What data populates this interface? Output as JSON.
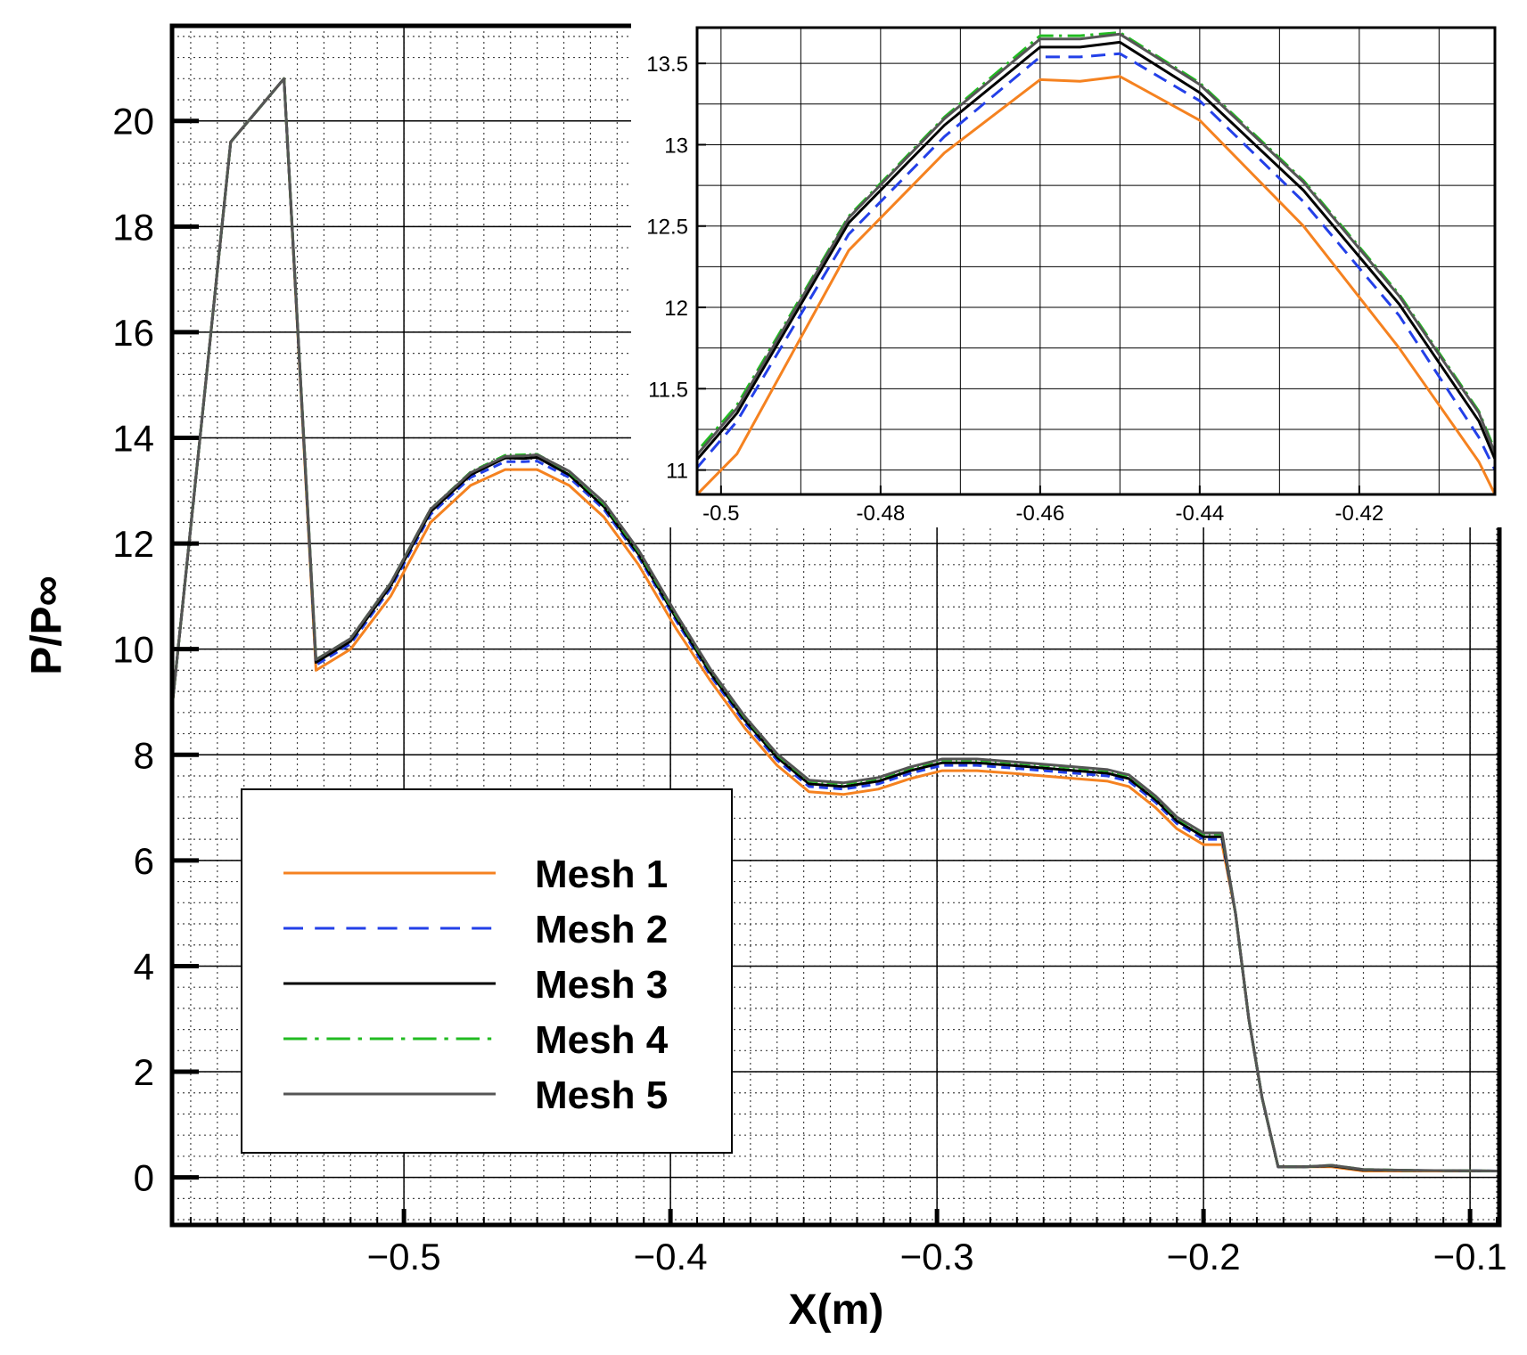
{
  "chart_data": [
    {
      "type": "line",
      "title": "",
      "xlabel": "X(m)",
      "ylabel": "P/P∞",
      "xlim": [
        -0.587,
        -0.089
      ],
      "ylim": [
        -0.9,
        21.8
      ],
      "xticks": [
        -0.5,
        -0.4,
        -0.3,
        -0.2,
        -0.1
      ],
      "xtick_labels": [
        "−0.5",
        "−0.4",
        "−0.3",
        "−0.2",
        "−0.1"
      ],
      "yticks": [
        0,
        2,
        4,
        6,
        8,
        10,
        12,
        14,
        16,
        18,
        20
      ],
      "ytick_labels": [
        "0",
        "2",
        "4",
        "6",
        "8",
        "10",
        "12",
        "14",
        "16",
        "18",
        "20"
      ],
      "grid": true,
      "legend_position": "bottom-left",
      "series": [
        {
          "name": "Mesh 1",
          "color": "#f58220",
          "dash": "solid",
          "x": [
            -0.587,
            -0.565,
            -0.555,
            -0.545,
            -0.533,
            -0.52,
            -0.505,
            -0.49,
            -0.475,
            -0.462,
            -0.455,
            -0.45,
            -0.438,
            -0.425,
            -0.412,
            -0.398,
            -0.385,
            -0.372,
            -0.36,
            -0.348,
            -0.335,
            -0.322,
            -0.31,
            -0.298,
            -0.285,
            -0.272,
            -0.26,
            -0.248,
            -0.236,
            -0.228,
            -0.218,
            -0.21,
            -0.2,
            -0.193,
            -0.188,
            -0.183,
            -0.178,
            -0.172,
            -0.162,
            -0.152,
            -0.14,
            -0.12,
            -0.089
          ],
          "y": [
            8.9,
            19.6,
            20.2,
            20.8,
            9.6,
            10.0,
            11.0,
            12.4,
            13.1,
            13.4,
            13.4,
            13.4,
            13.1,
            12.5,
            11.6,
            10.4,
            9.4,
            8.5,
            7.8,
            7.3,
            7.25,
            7.35,
            7.55,
            7.7,
            7.7,
            7.65,
            7.6,
            7.55,
            7.5,
            7.4,
            7.0,
            6.6,
            6.3,
            6.3,
            5.0,
            3.0,
            1.5,
            0.2,
            0.2,
            0.2,
            0.12,
            0.12,
            0.12
          ]
        },
        {
          "name": "Mesh 2",
          "color": "#2340e8",
          "dash": "dashed",
          "x": [
            -0.587,
            -0.565,
            -0.555,
            -0.545,
            -0.533,
            -0.52,
            -0.505,
            -0.49,
            -0.475,
            -0.462,
            -0.455,
            -0.45,
            -0.438,
            -0.425,
            -0.412,
            -0.398,
            -0.385,
            -0.372,
            -0.36,
            -0.348,
            -0.335,
            -0.322,
            -0.31,
            -0.298,
            -0.285,
            -0.272,
            -0.26,
            -0.248,
            -0.236,
            -0.228,
            -0.218,
            -0.21,
            -0.2,
            -0.193,
            -0.188,
            -0.183,
            -0.178,
            -0.172,
            -0.162,
            -0.152,
            -0.14,
            -0.12,
            -0.089
          ],
          "y": [
            8.9,
            19.6,
            20.2,
            20.8,
            9.7,
            10.1,
            11.15,
            12.55,
            13.25,
            13.55,
            13.55,
            13.56,
            13.25,
            12.65,
            11.75,
            10.55,
            9.5,
            8.6,
            7.9,
            7.4,
            7.35,
            7.45,
            7.65,
            7.8,
            7.8,
            7.75,
            7.7,
            7.65,
            7.6,
            7.5,
            7.1,
            6.7,
            6.4,
            6.4,
            5.0,
            3.0,
            1.5,
            0.2,
            0.2,
            0.22,
            0.14,
            0.13,
            0.12
          ]
        },
        {
          "name": "Mesh 3",
          "color": "#000000",
          "dash": "solid",
          "x": [
            -0.587,
            -0.565,
            -0.555,
            -0.545,
            -0.533,
            -0.52,
            -0.505,
            -0.49,
            -0.475,
            -0.462,
            -0.455,
            -0.45,
            -0.438,
            -0.425,
            -0.412,
            -0.398,
            -0.385,
            -0.372,
            -0.36,
            -0.348,
            -0.335,
            -0.322,
            -0.31,
            -0.298,
            -0.285,
            -0.272,
            -0.26,
            -0.248,
            -0.236,
            -0.228,
            -0.218,
            -0.21,
            -0.2,
            -0.193,
            -0.188,
            -0.183,
            -0.178,
            -0.172,
            -0.162,
            -0.152,
            -0.14,
            -0.12,
            -0.089
          ],
          "y": [
            8.9,
            19.6,
            20.2,
            20.8,
            9.75,
            10.15,
            11.2,
            12.6,
            13.3,
            13.62,
            13.61,
            13.63,
            13.3,
            12.7,
            11.8,
            10.6,
            9.55,
            8.65,
            7.95,
            7.45,
            7.4,
            7.5,
            7.7,
            7.85,
            7.85,
            7.8,
            7.75,
            7.7,
            7.65,
            7.55,
            7.15,
            6.75,
            6.45,
            6.45,
            5.0,
            3.0,
            1.5,
            0.2,
            0.2,
            0.22,
            0.14,
            0.13,
            0.12
          ]
        },
        {
          "name": "Mesh 4",
          "color": "#22bb22",
          "dash": "dashdot",
          "x": [
            -0.587,
            -0.565,
            -0.555,
            -0.545,
            -0.533,
            -0.52,
            -0.505,
            -0.49,
            -0.475,
            -0.462,
            -0.455,
            -0.45,
            -0.438,
            -0.425,
            -0.412,
            -0.398,
            -0.385,
            -0.372,
            -0.36,
            -0.348,
            -0.335,
            -0.322,
            -0.31,
            -0.298,
            -0.285,
            -0.272,
            -0.26,
            -0.248,
            -0.236,
            -0.228,
            -0.218,
            -0.21,
            -0.2,
            -0.193,
            -0.188,
            -0.183,
            -0.178,
            -0.172,
            -0.162,
            -0.152,
            -0.14,
            -0.12,
            -0.089
          ],
          "y": [
            8.9,
            19.6,
            20.2,
            20.8,
            9.8,
            10.2,
            11.25,
            12.65,
            13.35,
            13.67,
            13.68,
            13.69,
            13.35,
            12.75,
            11.85,
            10.65,
            9.6,
            8.7,
            8.0,
            7.5,
            7.45,
            7.55,
            7.75,
            7.9,
            7.9,
            7.85,
            7.8,
            7.75,
            7.7,
            7.6,
            7.2,
            6.8,
            6.5,
            6.5,
            5.0,
            3.0,
            1.5,
            0.2,
            0.2,
            0.23,
            0.15,
            0.13,
            0.12
          ]
        },
        {
          "name": "Mesh 5",
          "color": "#555555",
          "dash": "solid",
          "x": [
            -0.587,
            -0.565,
            -0.555,
            -0.545,
            -0.533,
            -0.52,
            -0.505,
            -0.49,
            -0.475,
            -0.462,
            -0.455,
            -0.45,
            -0.438,
            -0.425,
            -0.412,
            -0.398,
            -0.385,
            -0.372,
            -0.36,
            -0.348,
            -0.335,
            -0.322,
            -0.31,
            -0.298,
            -0.285,
            -0.272,
            -0.26,
            -0.248,
            -0.236,
            -0.228,
            -0.218,
            -0.21,
            -0.2,
            -0.193,
            -0.188,
            -0.183,
            -0.178,
            -0.172,
            -0.162,
            -0.152,
            -0.14,
            -0.12,
            -0.089
          ],
          "y": [
            8.9,
            19.6,
            20.2,
            20.8,
            9.8,
            10.2,
            11.25,
            12.65,
            13.34,
            13.65,
            13.66,
            13.68,
            13.37,
            12.78,
            11.88,
            10.68,
            9.62,
            8.72,
            8.02,
            7.52,
            7.47,
            7.57,
            7.77,
            7.92,
            7.92,
            7.87,
            7.82,
            7.77,
            7.72,
            7.62,
            7.22,
            6.82,
            6.52,
            6.52,
            5.0,
            3.0,
            1.5,
            0.2,
            0.2,
            0.23,
            0.15,
            0.13,
            0.12
          ]
        }
      ]
    },
    {
      "type": "line",
      "title": "",
      "xlabel": "",
      "ylabel": "",
      "xlim": [
        -0.503,
        -0.403
      ],
      "ylim": [
        10.85,
        13.72
      ],
      "xticks": [
        -0.5,
        -0.48,
        -0.46,
        -0.44,
        -0.42
      ],
      "xtick_labels": [
        "-0.5",
        "-0.48",
        "-0.46",
        "-0.44",
        "-0.42"
      ],
      "yticks": [
        11,
        11.5,
        12,
        12.5,
        13,
        13.5
      ],
      "ytick_labels": [
        "11",
        "11.5",
        "12",
        "12.5",
        "13",
        "13.5"
      ],
      "grid": true,
      "series": [
        {
          "name": "Mesh 1",
          "color": "#f58220",
          "dash": "solid",
          "x": [
            -0.505,
            -0.498,
            -0.484,
            -0.472,
            -0.46,
            -0.455,
            -0.45,
            -0.44,
            -0.427,
            -0.415,
            -0.405,
            -0.402
          ],
          "y": [
            10.75,
            11.1,
            12.35,
            12.95,
            13.4,
            13.39,
            13.42,
            13.15,
            12.5,
            11.75,
            11.05,
            10.75
          ]
        },
        {
          "name": "Mesh 2",
          "color": "#2340e8",
          "dash": "dashed",
          "x": [
            -0.505,
            -0.498,
            -0.484,
            -0.472,
            -0.46,
            -0.455,
            -0.45,
            -0.44,
            -0.427,
            -0.415,
            -0.405,
            -0.402
          ],
          "y": [
            10.9,
            11.3,
            12.45,
            13.05,
            13.54,
            13.54,
            13.56,
            13.27,
            12.65,
            11.95,
            11.2,
            10.9
          ]
        },
        {
          "name": "Mesh 3",
          "color": "#000000",
          "dash": "solid",
          "x": [
            -0.505,
            -0.498,
            -0.484,
            -0.472,
            -0.46,
            -0.455,
            -0.45,
            -0.44,
            -0.427,
            -0.415,
            -0.405,
            -0.402
          ],
          "y": [
            10.95,
            11.35,
            12.52,
            13.12,
            13.6,
            13.6,
            13.63,
            13.32,
            12.72,
            12.02,
            11.3,
            10.95
          ]
        },
        {
          "name": "Mesh 4",
          "color": "#22bb22",
          "dash": "dashdot",
          "x": [
            -0.505,
            -0.498,
            -0.484,
            -0.472,
            -0.46,
            -0.455,
            -0.45,
            -0.44,
            -0.427,
            -0.415,
            -0.405,
            -0.402
          ],
          "y": [
            11.0,
            11.4,
            12.56,
            13.17,
            13.67,
            13.67,
            13.69,
            13.38,
            12.78,
            12.08,
            11.36,
            11.0
          ]
        },
        {
          "name": "Mesh 5",
          "color": "#555555",
          "dash": "solid",
          "x": [
            -0.505,
            -0.498,
            -0.484,
            -0.472,
            -0.46,
            -0.455,
            -0.45,
            -0.44,
            -0.427,
            -0.415,
            -0.405,
            -0.402
          ],
          "y": [
            10.98,
            11.38,
            12.55,
            13.16,
            13.65,
            13.65,
            13.68,
            13.37,
            12.77,
            12.07,
            11.35,
            10.98
          ]
        }
      ]
    }
  ]
}
